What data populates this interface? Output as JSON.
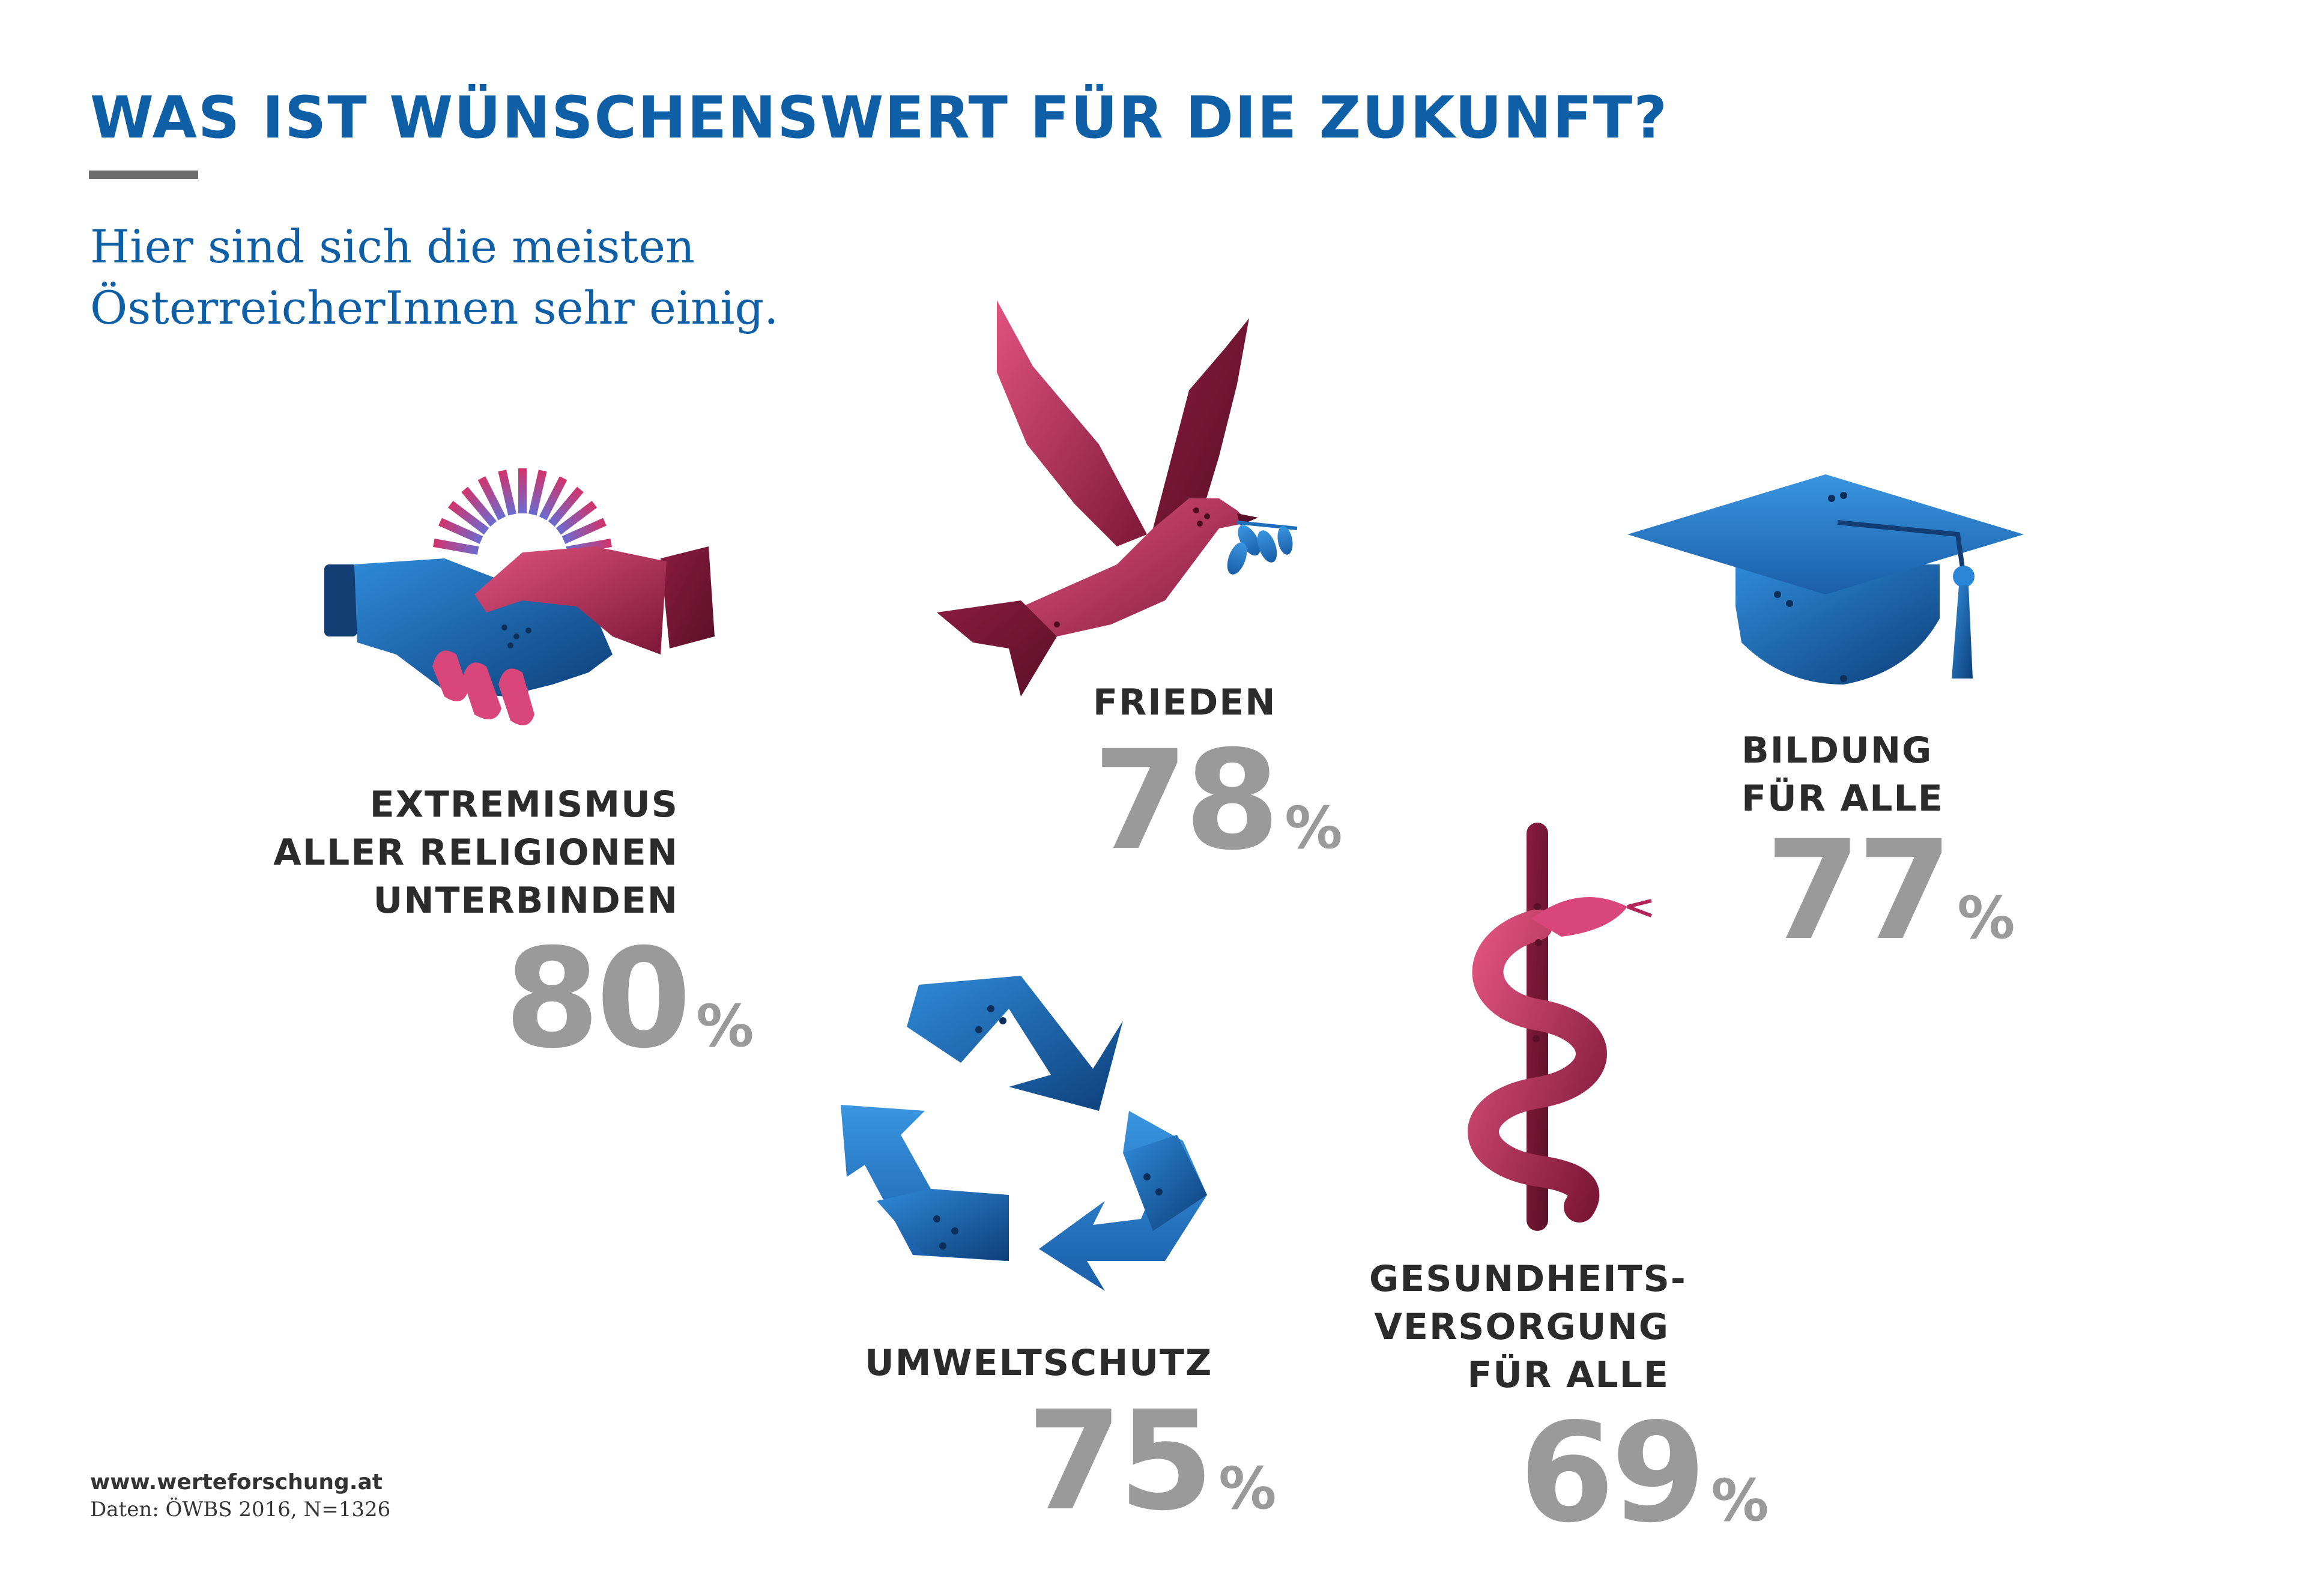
{
  "title": "WAS IST WÜNSCHENSWERT FÜR DIE ZUKUNFT?",
  "subtitle": "Hier sind sich die meisten ÖsterreicherInnen sehr einig.",
  "colors": {
    "title_blue": "#0f5fa6",
    "value_gray": "#9a9a9a",
    "icon_red": "#b3245a",
    "icon_blue": "#1f6fb8"
  },
  "chart_data": {
    "type": "bar",
    "categories": [
      "EXTREMISMUS ALLER RELIGIONEN UNTERBINDEN",
      "FRIEDEN",
      "BILDUNG FÜR ALLE",
      "UMWELTSCHUTZ",
      "GESUNDHEITS-VERSORGUNG FÜR ALLE"
    ],
    "values": [
      80,
      78,
      77,
      75,
      69
    ],
    "unit": "%"
  },
  "items": [
    {
      "label": "EXTREMISMUS\nALLER RELIGIONEN\nUNTERBINDEN",
      "value": "80",
      "unit": "%",
      "icon": "handshake-icon"
    },
    {
      "label": "FRIEDEN",
      "value": "78",
      "unit": "%",
      "icon": "dove-icon"
    },
    {
      "label": "BILDUNG\nFÜR ALLE",
      "value": "77",
      "unit": "%",
      "icon": "graduation-cap-icon"
    },
    {
      "label": "UMWELTSCHUTZ",
      "value": "75",
      "unit": "%",
      "icon": "recycle-icon"
    },
    {
      "label": "GESUNDHEITS-\nVERSORGUNG\nFÜR ALLE",
      "value": "69",
      "unit": "%",
      "icon": "rod-of-asclepius-icon"
    }
  ],
  "footer": {
    "url": "www.werteforschung.at",
    "source": "Daten: ÖWBS 2016, N=1326"
  }
}
